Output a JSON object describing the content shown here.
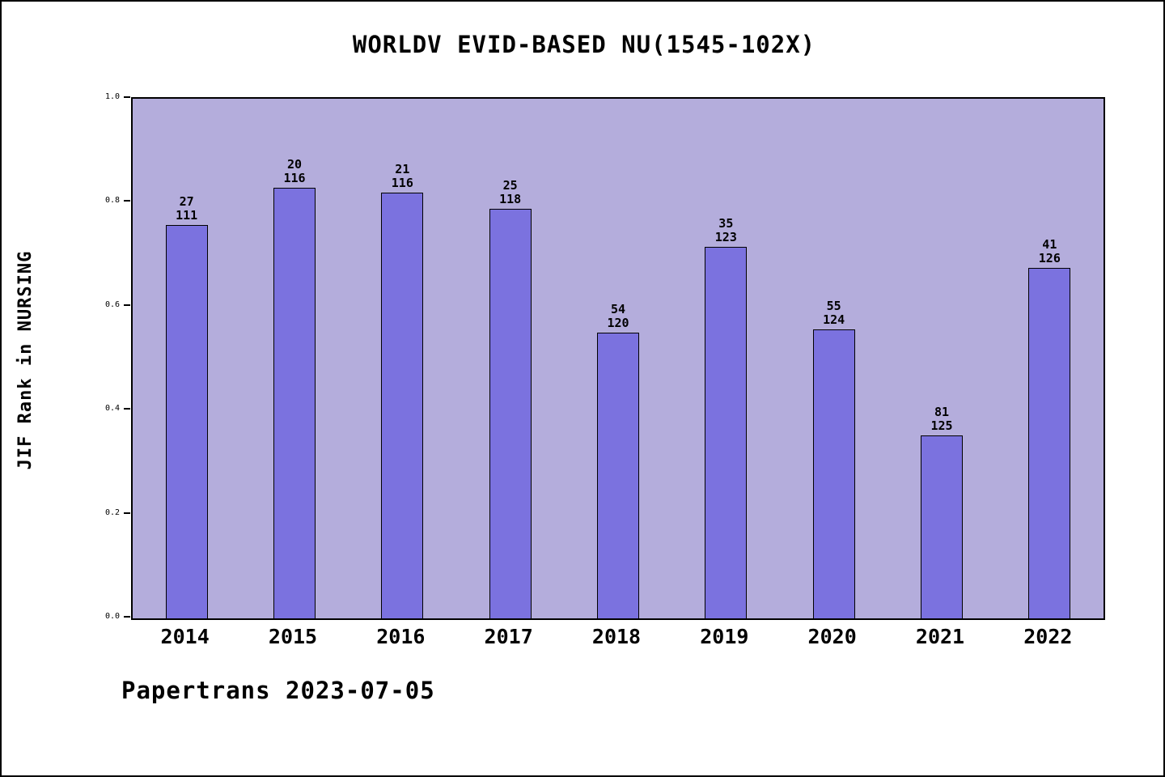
{
  "title": "WORLDV EVID-BASED NU(1545-102X)",
  "footer": "Papertrans 2023-07-05",
  "chart_data": {
    "type": "bar",
    "title": "WORLDV EVID-BASED NU(1545-102X)",
    "xlabel": "",
    "ylabel": "JIF Rank in NURSING",
    "ylim": [
      0.0,
      1.0
    ],
    "yticks": [
      "0.0",
      "0.2",
      "0.4",
      "0.6",
      "0.8",
      "1.0"
    ],
    "grid": "off",
    "legend": "none",
    "categories": [
      "2014",
      "2015",
      "2016",
      "2017",
      "2018",
      "2019",
      "2020",
      "2021",
      "2022"
    ],
    "points": [
      {
        "year": "2014",
        "rank": "27",
        "total": "111",
        "value": 0.757
      },
      {
        "year": "2015",
        "rank": "20",
        "total": "116",
        "value": 0.828
      },
      {
        "year": "2016",
        "rank": "21",
        "total": "116",
        "value": 0.819
      },
      {
        "year": "2017",
        "rank": "25",
        "total": "118",
        "value": 0.788
      },
      {
        "year": "2018",
        "rank": "54",
        "total": "120",
        "value": 0.55
      },
      {
        "year": "2019",
        "rank": "35",
        "total": "123",
        "value": 0.715
      },
      {
        "year": "2020",
        "rank": "55",
        "total": "124",
        "value": 0.556
      },
      {
        "year": "2021",
        "rank": "81",
        "total": "125",
        "value": 0.352
      },
      {
        "year": "2022",
        "rank": "41",
        "total": "126",
        "value": 0.675
      }
    ],
    "bar_color": "#7b72df",
    "plot_background": "#b4addc",
    "footer_text": "Papertrans 2023-07-05"
  }
}
